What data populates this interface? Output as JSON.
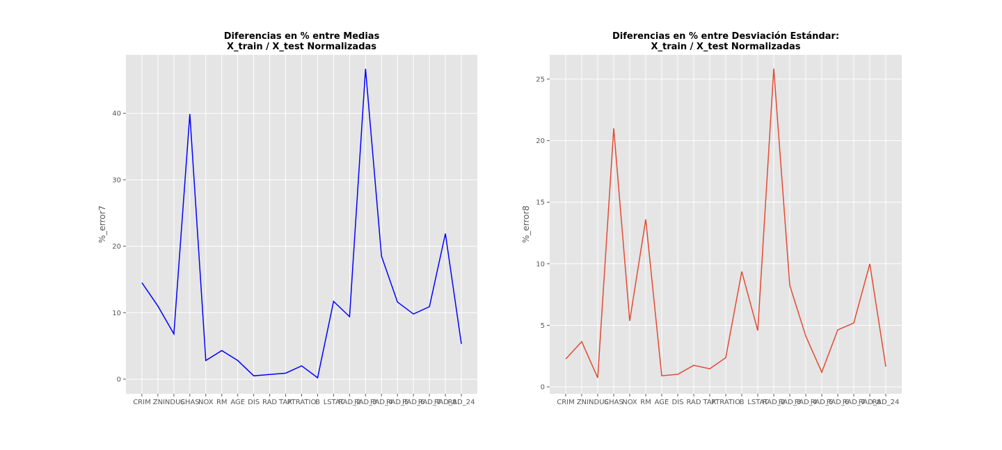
{
  "chart_data": [
    {
      "type": "line",
      "title": [
        "Diferencias en % entre Medias",
        " X_train / X_test Normalizadas"
      ],
      "y_label": "%_error7",
      "categories": [
        "CRIM",
        "ZN",
        "INDUS",
        "CHAS",
        "NOX",
        "RM",
        "AGE",
        "DIS",
        "RAD",
        "TAX",
        "PTRATIO",
        "B",
        "LSTAT",
        "RAD_2",
        "RAD_3",
        "RAD_4",
        "RAD_5",
        "RAD_6",
        "RAD_7",
        "RAD_8",
        "RAD_24"
      ],
      "series": [
        {
          "name": "%_error7",
          "color": "#0000ff",
          "values": [
            14.5,
            11.0,
            6.8,
            39.9,
            2.8,
            4.3,
            2.8,
            0.5,
            0.7,
            0.9,
            2.0,
            0.2,
            11.7,
            9.4,
            46.7,
            18.5,
            11.6,
            9.8,
            10.9,
            21.9,
            5.3
          ]
        }
      ],
      "ylim": [
        -2.2,
        48.8
      ],
      "yticks": [
        0,
        10,
        20,
        30,
        40
      ],
      "grid": true
    },
    {
      "type": "line",
      "title": [
        "Diferencias en % entre Desviación Estándar:",
        "X_train / X_test Normalizadas"
      ],
      "y_label": "%_error8",
      "categories": [
        "CRIM",
        "ZN",
        "INDUS",
        "CHAS",
        "NOX",
        "RM",
        "AGE",
        "DIS",
        "RAD",
        "TAX",
        "PTRATIO",
        "B",
        "LSTAT",
        "RAD_2",
        "RAD_3",
        "RAD_4",
        "RAD_5",
        "RAD_6",
        "RAD_7",
        "RAD_8",
        "RAD_24"
      ],
      "series": [
        {
          "name": "%_error8",
          "color": "#e24a33",
          "values": [
            2.26,
            3.67,
            0.73,
            21.0,
            5.36,
            13.6,
            0.9,
            1.02,
            1.75,
            1.47,
            2.37,
            9.37,
            4.57,
            25.85,
            8.24,
            4.12,
            1.19,
            4.63,
            5.19,
            9.99,
            1.64
          ]
        }
      ],
      "ylim": [
        -0.56,
        26.97
      ],
      "yticks": [
        0,
        5,
        10,
        15,
        20,
        25
      ],
      "grid": true
    }
  ]
}
